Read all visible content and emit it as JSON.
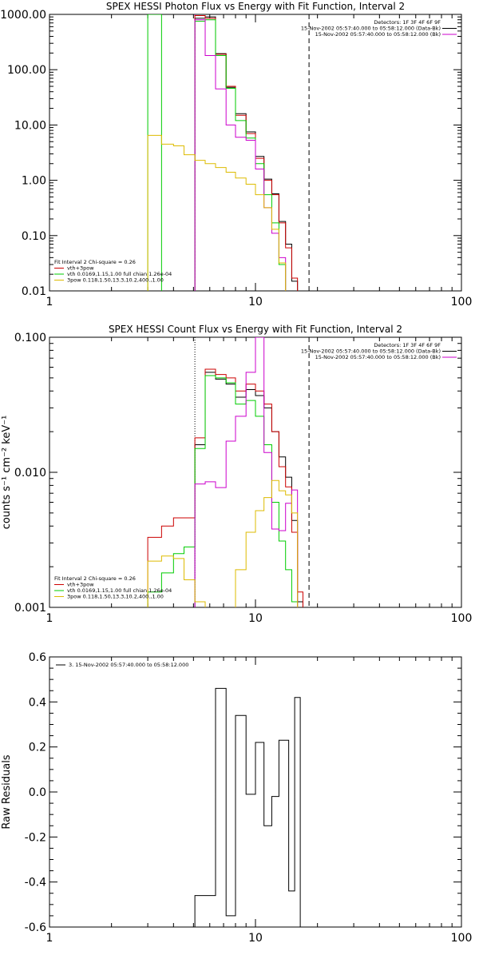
{
  "chart_data": [
    {
      "type": "line",
      "title": "SPEX HESSI Photon Flux vs Energy with Fit Function, Interval 2",
      "xscale": "log",
      "yscale": "log",
      "xlim": [
        1,
        100
      ],
      "ylim": [
        0.01,
        1000
      ],
      "xticks": [
        {
          "v": 1,
          "label": "1"
        },
        {
          "v": 10,
          "label": "10"
        },
        {
          "v": 100,
          "label": "100"
        }
      ],
      "yticks": [
        {
          "v": 0.01,
          "label": "0.01"
        },
        {
          "v": 0.1,
          "label": "0.10"
        },
        {
          "v": 1,
          "label": "1.00"
        },
        {
          "v": 10,
          "label": "10.00"
        },
        {
          "v": 100,
          "label": "100.00"
        },
        {
          "v": 1000,
          "label": "1000.00"
        }
      ],
      "vlines": [
        {
          "x": 5.08,
          "color": "#cc00cc",
          "dash": "2,2"
        },
        {
          "x": 18.2,
          "color": "#000000",
          "dash": "6,4"
        }
      ],
      "info_lines": [
        "Detectors: 1F 3F 4F 6F 9F",
        "15-Nov-2002 05:57:40.000 to 05:58:12.000 (Data-Bk)",
        "15-Nov-2002 05:57:40.000 to 05:58:12.000 (Bk)"
      ],
      "info_colors": [
        "#000000",
        "#000000",
        "#cc00cc"
      ],
      "fit_lines": [
        "Fit Interval 2   Chi-square = 0.26",
        "vth+3pow",
        "vth 0.0169,1.15,1.00  full chian 1.26e-04",
        "3pow 0.118,1.50,13.3,10.2,400.,1.00"
      ],
      "fit_colors": [
        "#000000",
        "#cc0000",
        "#00cc00",
        "#ddbb00"
      ],
      "edges": [
        3.0,
        3.5,
        4.0,
        4.5,
        5.08,
        5.7,
        6.4,
        7.2,
        8.0,
        9.0,
        10.0,
        11.0,
        12.0,
        13.0,
        14.0,
        15.0,
        16.0,
        17.0,
        18.2,
        19.5,
        21.0
      ],
      "series": [
        {
          "color": "#000000",
          "values": [
            null,
            null,
            null,
            null,
            850,
            900,
            195,
            48,
            16,
            7.5,
            2.7,
            1.05,
            0.57,
            0.18,
            0.07,
            0.015
          ]
        },
        {
          "color": "#cc0000",
          "values": [
            null,
            null,
            null,
            null,
            950,
            850,
            190,
            50,
            15,
            7,
            2.5,
            1.0,
            0.55,
            0.17,
            0.06,
            0.017
          ]
        },
        {
          "color": "#00cc00",
          "values": [
            1000,
            null,
            null,
            null,
            750,
            800,
            180,
            46,
            12,
            5.8,
            2.0,
            0.55,
            0.17,
            0.03,
            0.006,
            null
          ]
        },
        {
          "color": "#cc00cc",
          "values": [
            null,
            null,
            null,
            null,
            800,
            180,
            45,
            10,
            6,
            5.3,
            1.6,
            0.32,
            0.11,
            0.04,
            0.005,
            null
          ]
        },
        {
          "color": "#ddbb00",
          "values": [
            6.5,
            4.5,
            4.2,
            2.9,
            2.3,
            2.0,
            1.7,
            1.4,
            1.1,
            0.85,
            0.55,
            0.32,
            0.13,
            0.032,
            0.005,
            null
          ]
        }
      ]
    },
    {
      "type": "line",
      "title": "SPEX HESSI Count Flux vs Energy with Fit Function, Interval 2",
      "ylabel": "counts s⁻¹ cm⁻² keV⁻¹",
      "xscale": "log",
      "yscale": "log",
      "xlim": [
        1,
        100
      ],
      "ylim": [
        0.001,
        0.1
      ],
      "xticks": [
        {
          "v": 1,
          "label": "1"
        },
        {
          "v": 10,
          "label": "10"
        },
        {
          "v": 100,
          "label": "100"
        }
      ],
      "yticks": [
        {
          "v": 0.001,
          "label": "0.001"
        },
        {
          "v": 0.01,
          "label": "0.010"
        },
        {
          "v": 0.1,
          "label": "0.100"
        }
      ],
      "vlines": [
        {
          "x": 5.08,
          "color": "#000000",
          "dash": "1,2"
        },
        {
          "x": 18.2,
          "color": "#000000",
          "dash": "6,4"
        }
      ],
      "info_lines": [
        "Detectors: 1F 3F 4F 6F 9F",
        "15-Nov-2002 05:57:40.000 to 05:58:12.000 (Data-Bk)",
        "15-Nov-2002 05:57:40.000 to 05:58:12.000 (Bk)"
      ],
      "info_colors": [
        "#000000",
        "#000000",
        "#cc00cc"
      ],
      "fit_lines": [
        "Fit Interval 2   Chi-square = 0.26",
        "vth+3pow",
        "vth 0.0169,1.15,1.00  full chian 1.26e-04",
        "3pow 0.118,1.50,13.3,10.2,400.,1.00"
      ],
      "fit_colors": [
        "#000000",
        "#cc0000",
        "#00cc00",
        "#ddbb00"
      ],
      "edges": [
        3.0,
        3.5,
        4.0,
        4.5,
        5.08,
        5.7,
        6.4,
        7.2,
        8.0,
        9.0,
        10.0,
        11.0,
        12.0,
        13.0,
        14.0,
        15.0,
        16.0,
        17.0,
        18.2,
        19.5,
        21.0
      ],
      "series": [
        {
          "color": "#000000",
          "values": [
            null,
            null,
            null,
            null,
            0.016,
            0.055,
            0.049,
            0.045,
            0.036,
            0.041,
            0.037,
            0.03,
            0.02,
            0.013,
            0.0092,
            0.0044,
            0.0011
          ]
        },
        {
          "color": "#cc0000",
          "values": [
            0.0033,
            0.004,
            0.0046,
            0.0046,
            0.018,
            0.058,
            0.053,
            0.05,
            0.04,
            0.045,
            0.04,
            0.032,
            0.02,
            0.011,
            0.0078,
            0.0036,
            0.0013
          ]
        },
        {
          "color": "#00cc00",
          "values": [
            0.0013,
            0.0018,
            0.0025,
            0.0028,
            0.015,
            0.052,
            0.05,
            0.046,
            0.032,
            0.034,
            0.026,
            0.016,
            0.006,
            0.0031,
            0.0019,
            0.0011,
            null
          ]
        },
        {
          "color": "#cc00cc",
          "values": [
            null,
            null,
            null,
            null,
            0.0082,
            0.0085,
            0.0077,
            0.017,
            0.026,
            0.055,
            0.1,
            0.014,
            0.0038,
            0.0037,
            0.0059,
            0.0074,
            null
          ]
        },
        {
          "color": "#ddbb00",
          "values": [
            0.0022,
            0.0024,
            0.0023,
            0.0016,
            0.0011,
            0.0009,
            null,
            null,
            0.0019,
            0.0036,
            0.0052,
            0.0065,
            0.0087,
            0.0073,
            0.0068,
            0.005,
            null
          ]
        }
      ]
    },
    {
      "type": "line",
      "ylabel": "Raw Residuals",
      "xscale": "log",
      "yscale": "linear",
      "xlim": [
        1,
        100
      ],
      "ylim": [
        -0.6,
        0.6
      ],
      "xticks": [
        {
          "v": 1,
          "label": "1"
        },
        {
          "v": 10,
          "label": "10"
        },
        {
          "v": 100,
          "label": "100"
        }
      ],
      "yticks": [
        {
          "v": -0.6,
          "label": "-0.6"
        },
        {
          "v": -0.4,
          "label": "-0.4"
        },
        {
          "v": -0.2,
          "label": "-0.2"
        },
        {
          "v": 0.0,
          "label": "0.0"
        },
        {
          "v": 0.2,
          "label": "0.2"
        },
        {
          "v": 0.4,
          "label": "0.4"
        },
        {
          "v": 0.6,
          "label": "0.6"
        }
      ],
      "legend": "3. 15-Nov-2002 05:57:40.000 to 05:58:12.000",
      "edges": [
        5.08,
        6.4,
        7.2,
        8.0,
        9.0,
        10.0,
        11.0,
        12.0,
        13.0,
        14.5,
        15.5,
        16.5,
        18.2
      ],
      "series": [
        {
          "color": "#000000",
          "values": [
            -0.46,
            0.46,
            -0.55,
            0.34,
            -0.01,
            0.22,
            -0.15,
            -0.02,
            0.23,
            -0.44,
            0.42,
            -0.6
          ]
        }
      ]
    }
  ]
}
